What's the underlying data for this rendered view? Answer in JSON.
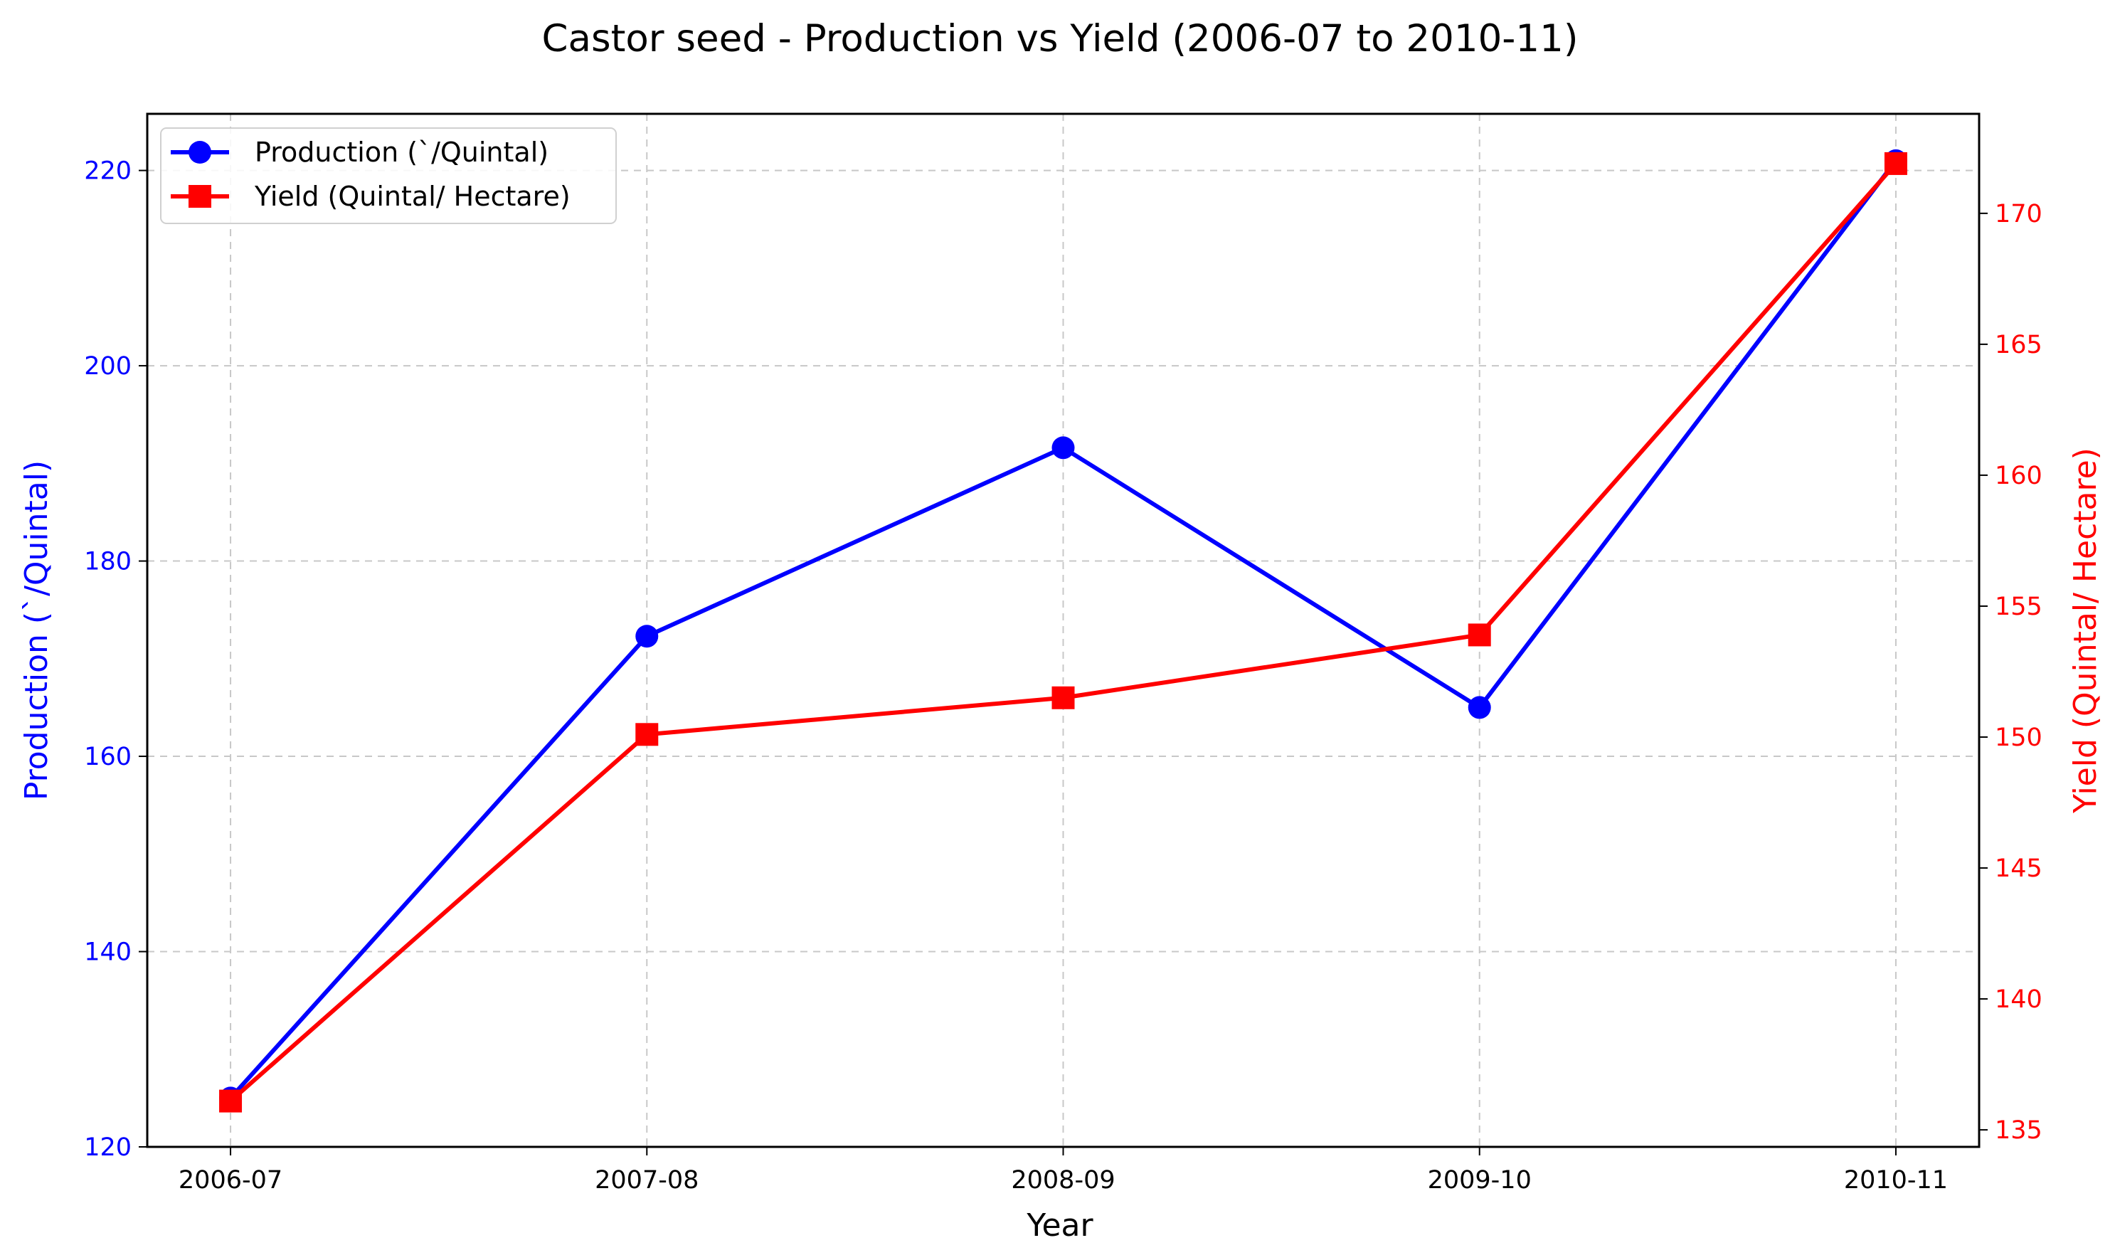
{
  "chart_data": {
    "type": "line",
    "title": "Castor seed - Production vs Yield (2006-07 to 2010-11)",
    "xlabel": "Year",
    "categories": [
      "2006-07",
      "2007-08",
      "2008-09",
      "2009-10",
      "2010-11"
    ],
    "grid": true,
    "legend_position": "top-left",
    "series": [
      {
        "name": "Production (`/Quintal)",
        "axis": "left",
        "color": "#0000ff",
        "marker": "circle",
        "values": [
          125,
          172.3,
          191.6,
          165,
          221
        ]
      },
      {
        "name": "Yield (Quintal/ Hectare)",
        "axis": "right",
        "color": "#ff0000",
        "marker": "square",
        "values": [
          136.1,
          150.1,
          151.5,
          153.9,
          171.9
        ]
      }
    ],
    "left_axis": {
      "label": "Production (`/Quintal)",
      "color": "#0000ff",
      "ylim": [
        120,
        225.8
      ],
      "ticks": [
        120,
        140,
        160,
        180,
        200,
        220
      ]
    },
    "right_axis": {
      "label": "Yield (Quintal/ Hectare)",
      "color": "#ff0000",
      "ylim": [
        134.35,
        173.8
      ],
      "ticks": [
        135,
        140,
        145,
        150,
        155,
        160,
        165,
        170
      ]
    }
  }
}
